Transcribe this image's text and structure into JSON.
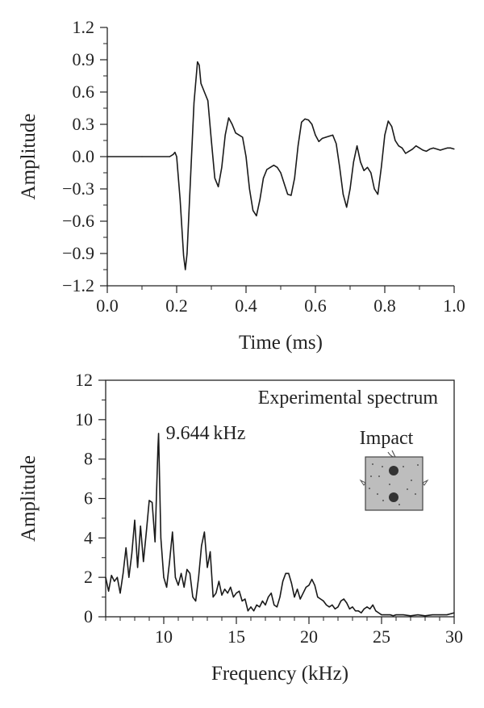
{
  "chart_data": [
    {
      "type": "line",
      "xlabel": "Time (ms)",
      "ylabel": "Amplitude",
      "xlim": [
        0.0,
        1.0
      ],
      "ylim": [
        -1.2,
        1.2
      ],
      "xticks": [
        "0.0",
        "0.2",
        "0.4",
        "0.6",
        "0.8",
        "1.0"
      ],
      "yticks": [
        "-1.2",
        "-0.9",
        "-0.6",
        "-0.3",
        "0.0",
        "0.3",
        "0.6",
        "0.9",
        "1.2"
      ],
      "grid": false,
      "series": [
        {
          "x": [
            0.0,
            0.1,
            0.18,
            0.19,
            0.195,
            0.2,
            0.21,
            0.22,
            0.225,
            0.23,
            0.24,
            0.25,
            0.26,
            0.265,
            0.27,
            0.28,
            0.29,
            0.3,
            0.31,
            0.32,
            0.33,
            0.34,
            0.35,
            0.36,
            0.37,
            0.38,
            0.39,
            0.4,
            0.41,
            0.42,
            0.43,
            0.44,
            0.45,
            0.46,
            0.47,
            0.48,
            0.49,
            0.5,
            0.51,
            0.52,
            0.53,
            0.54,
            0.55,
            0.56,
            0.57,
            0.58,
            0.59,
            0.6,
            0.61,
            0.62,
            0.63,
            0.64,
            0.65,
            0.66,
            0.67,
            0.68,
            0.69,
            0.7,
            0.71,
            0.72,
            0.73,
            0.74,
            0.75,
            0.76,
            0.77,
            0.78,
            0.79,
            0.8,
            0.81,
            0.82,
            0.83,
            0.84,
            0.85,
            0.86,
            0.87,
            0.88,
            0.89,
            0.9,
            0.91,
            0.92,
            0.93,
            0.94,
            0.95,
            0.96,
            0.97,
            0.98,
            0.99,
            1.0
          ],
          "y": [
            0.0,
            0.0,
            0.0,
            0.02,
            0.04,
            0.0,
            -0.4,
            -0.92,
            -1.05,
            -0.9,
            -0.2,
            0.5,
            0.88,
            0.85,
            0.68,
            0.6,
            0.52,
            0.15,
            -0.2,
            -0.28,
            -0.1,
            0.2,
            0.36,
            0.3,
            0.22,
            0.2,
            0.18,
            0.0,
            -0.3,
            -0.5,
            -0.55,
            -0.4,
            -0.2,
            -0.12,
            -0.1,
            -0.08,
            -0.1,
            -0.15,
            -0.25,
            -0.35,
            -0.36,
            -0.2,
            0.1,
            0.32,
            0.35,
            0.34,
            0.3,
            0.2,
            0.14,
            0.17,
            0.18,
            0.19,
            0.2,
            0.12,
            -0.1,
            -0.35,
            -0.47,
            -0.3,
            -0.05,
            0.1,
            -0.05,
            -0.13,
            -0.1,
            -0.15,
            -0.3,
            -0.35,
            -0.1,
            0.2,
            0.33,
            0.28,
            0.15,
            0.1,
            0.08,
            0.03,
            0.05,
            0.07,
            0.1,
            0.08,
            0.06,
            0.05,
            0.07,
            0.08,
            0.07,
            0.06,
            0.07,
            0.08,
            0.08,
            0.07
          ]
        }
      ]
    },
    {
      "type": "line",
      "xlabel": "Frequency (kHz)",
      "ylabel": "Amplitude",
      "xlim": [
        6,
        30
      ],
      "ylim": [
        0,
        12
      ],
      "xticks": [
        "10",
        "15",
        "20",
        "25",
        "30"
      ],
      "yticks": [
        "0",
        "2",
        "4",
        "6",
        "8",
        "10",
        "12"
      ],
      "grid": false,
      "legend": "Experimental spectrum",
      "legend_position": "top-right",
      "annotations": [
        {
          "text": "9.644 kHz",
          "x": 9.644,
          "y": 9.3
        },
        {
          "text": "Impact"
        }
      ],
      "series": [
        {
          "name": "Experimental spectrum",
          "x": [
            6.0,
            6.2,
            6.4,
            6.6,
            6.8,
            7.0,
            7.2,
            7.4,
            7.6,
            7.8,
            8.0,
            8.2,
            8.4,
            8.6,
            8.8,
            9.0,
            9.2,
            9.4,
            9.6,
            9.644,
            9.8,
            10.0,
            10.2,
            10.4,
            10.6,
            10.8,
            11.0,
            11.2,
            11.4,
            11.6,
            11.8,
            12.0,
            12.2,
            12.4,
            12.6,
            12.8,
            13.0,
            13.2,
            13.4,
            13.6,
            13.8,
            14.0,
            14.2,
            14.4,
            14.6,
            14.8,
            15.0,
            15.2,
            15.4,
            15.6,
            15.8,
            16.0,
            16.2,
            16.4,
            16.6,
            16.8,
            17.0,
            17.2,
            17.4,
            17.6,
            17.8,
            18.0,
            18.2,
            18.4,
            18.6,
            18.8,
            19.0,
            19.2,
            19.4,
            19.6,
            19.8,
            20.0,
            20.2,
            20.4,
            20.6,
            20.8,
            21.0,
            21.2,
            21.4,
            21.6,
            21.8,
            22.0,
            22.2,
            22.4,
            22.6,
            22.8,
            23.0,
            23.2,
            23.4,
            23.6,
            23.8,
            24.0,
            24.2,
            24.4,
            24.6,
            24.8,
            25.0,
            25.2,
            25.4,
            25.6,
            25.8,
            26.0,
            26.5,
            27.0,
            27.5,
            28.0,
            28.5,
            29.0,
            29.5,
            30.0
          ],
          "y": [
            2.0,
            1.3,
            2.1,
            1.8,
            2.0,
            1.2,
            2.2,
            3.5,
            2.0,
            3.2,
            4.9,
            2.5,
            4.6,
            2.8,
            4.3,
            5.9,
            5.8,
            3.8,
            8.6,
            9.3,
            4.0,
            2.0,
            1.5,
            2.8,
            4.3,
            2.0,
            1.6,
            2.2,
            1.5,
            2.4,
            2.2,
            1.0,
            0.8,
            2.0,
            3.6,
            4.3,
            2.5,
            3.3,
            1.0,
            1.2,
            1.8,
            1.1,
            1.4,
            1.2,
            1.5,
            1.0,
            1.2,
            1.3,
            0.8,
            0.9,
            0.3,
            0.5,
            0.3,
            0.6,
            0.5,
            0.8,
            0.6,
            1.0,
            1.2,
            0.6,
            0.5,
            1.0,
            1.8,
            2.2,
            2.2,
            1.7,
            1.0,
            1.4,
            0.9,
            1.2,
            1.5,
            1.6,
            1.9,
            1.6,
            1.0,
            0.9,
            0.8,
            0.6,
            0.5,
            0.6,
            0.4,
            0.5,
            0.8,
            0.9,
            0.7,
            0.4,
            0.5,
            0.3,
            0.3,
            0.2,
            0.4,
            0.5,
            0.4,
            0.6,
            0.3,
            0.2,
            0.1,
            0.1,
            0.1,
            0.1,
            0.05,
            0.1,
            0.1,
            0.05,
            0.1,
            0.05,
            0.1,
            0.1,
            0.1,
            0.2
          ]
        }
      ]
    }
  ]
}
